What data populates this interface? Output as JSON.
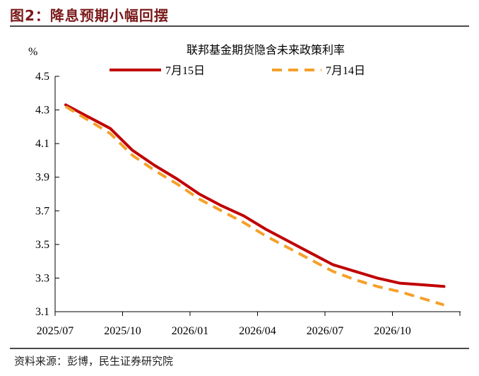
{
  "figure": {
    "title": "图2：降息预期小幅回摆",
    "source": "资料来源：彭博，民生证券研究院"
  },
  "chart_data": {
    "type": "line",
    "title": "联邦基金期货隐含未来政策利率",
    "ylabel": "%",
    "ylim": [
      3.1,
      4.5
    ],
    "yticks": [
      3.1,
      3.3,
      3.5,
      3.7,
      3.9,
      4.1,
      4.3,
      4.5
    ],
    "x": [
      "2025/07",
      "2025/08",
      "2025/09",
      "2025/10",
      "2025/11",
      "2025/12",
      "2026/01",
      "2026/02",
      "2026/03",
      "2026/04",
      "2026/05",
      "2026/06",
      "2026/07",
      "2026/08",
      "2026/09",
      "2026/10",
      "2026/11",
      "2026/12"
    ],
    "xtick_labels": [
      "2025/07",
      "2025/10",
      "2026/01",
      "2026/04",
      "2026/07",
      "2026/10"
    ],
    "legend_position": "top",
    "series": [
      {
        "name": "7月15日",
        "color": "#c00000",
        "style": "solid",
        "values": [
          4.33,
          4.26,
          4.19,
          4.06,
          3.97,
          3.89,
          3.8,
          3.73,
          3.67,
          3.59,
          3.52,
          3.45,
          3.38,
          3.34,
          3.3,
          3.27,
          3.26,
          3.25
        ]
      },
      {
        "name": "7月14日",
        "color": "#f5a02a",
        "style": "dashed",
        "values": [
          4.32,
          4.24,
          4.16,
          4.03,
          3.94,
          3.86,
          3.77,
          3.7,
          3.63,
          3.55,
          3.48,
          3.41,
          3.34,
          3.29,
          3.25,
          3.22,
          3.18,
          3.14
        ]
      }
    ]
  }
}
